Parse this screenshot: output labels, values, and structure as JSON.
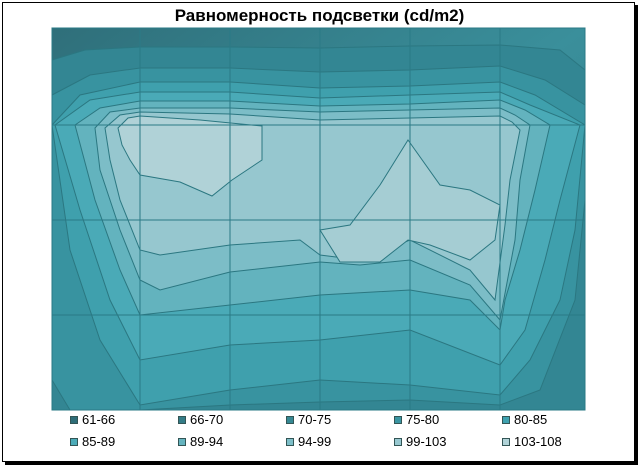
{
  "chart_data": {
    "type": "heatmap",
    "title": "Равномерность подсветки (cd/m2)",
    "legend_position": "bottom",
    "levels": [
      {
        "label": "61-66",
        "color": "#2e6d78"
      },
      {
        "label": "66-70",
        "color": "#337c87"
      },
      {
        "label": "70-75",
        "color": "#358893"
      },
      {
        "label": "75-80",
        "color": "#3a95a2"
      },
      {
        "label": "80-85",
        "color": "#3fa2b0"
      },
      {
        "label": "85-89",
        "color": "#4cabb8"
      },
      {
        "label": "89-94",
        "color": "#65b4bf"
      },
      {
        "label": "94-99",
        "color": "#7dbec8"
      },
      {
        "label": "99-103",
        "color": "#97c8d0"
      },
      {
        "label": "103-108",
        "color": "#b1d3d8"
      }
    ]
  }
}
